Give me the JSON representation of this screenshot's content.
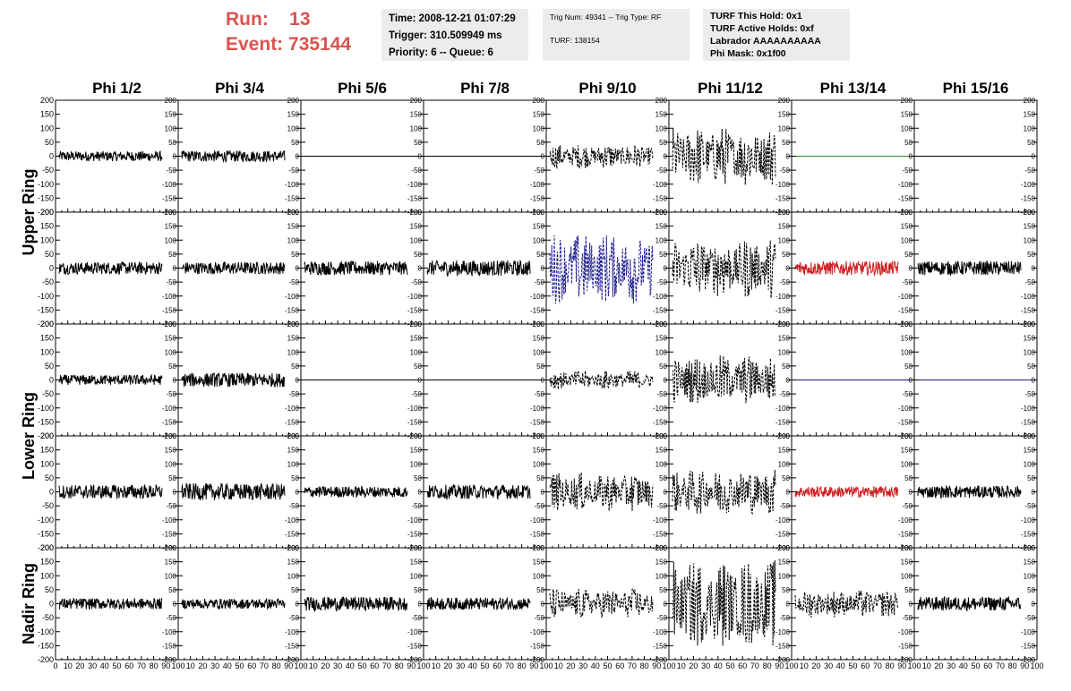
{
  "header": {
    "run_label": "Run:",
    "run_value": "13",
    "event_label": "Event:",
    "event_value": "735144",
    "info1": [
      "Time: 2008-12-21 01:07:29",
      "Trigger: 310.509949 ms",
      "Priority: 6 -- Queue: 6"
    ],
    "info2": [
      "Trig Num: 49341 -- Trig Type: RF",
      "TURF: 138154"
    ],
    "info3": [
      "TURF This Hold: 0x1",
      "TURF Active Holds: 0xf",
      "Labrador AAAAAAAAAA",
      "Phi Mask: 0x1f00"
    ]
  },
  "colors": {
    "header_red": "#d9534f",
    "info_bg": "#ececec",
    "trace_black": "#000000",
    "trace_blue": "#1a1a8c",
    "trace_green": "#2a8a2a",
    "trace_red": "#cc2222"
  },
  "chart_data": {
    "type": "line",
    "columns": [
      "Phi 1/2",
      "Phi 3/4",
      "Phi 5/6",
      "Phi 7/8",
      "Phi 9/10",
      "Phi 11/12",
      "Phi 13/14",
      "Phi 15/16"
    ],
    "ring_labels": [
      {
        "text": "Upper Ring",
        "rows": [
          0,
          1
        ]
      },
      {
        "text": "Lower Ring",
        "rows": [
          2,
          3
        ]
      },
      {
        "text": "Nadir Ring",
        "rows": [
          4,
          4
        ]
      }
    ],
    "ylim": [
      -200,
      200
    ],
    "xlim": [
      0,
      100
    ],
    "ytick_labels": [
      "200",
      "150",
      "100",
      "50",
      "0",
      "-50",
      "-100",
      "-150",
      "-200"
    ],
    "xtick_labels": [
      "0",
      "10",
      "20",
      "30",
      "40",
      "50",
      "60",
      "70",
      "80",
      "90",
      "100"
    ],
    "panels": [
      [
        {
          "a": 18,
          "t": "s",
          "c": "trace_black"
        },
        {
          "a": 20,
          "t": "s",
          "c": "trace_black"
        },
        {
          "a": 0,
          "t": "f",
          "c": "trace_black"
        },
        {
          "a": 0,
          "t": "f",
          "c": "trace_black"
        },
        {
          "a": 45,
          "t": "d",
          "c": "trace_black"
        },
        {
          "a": 110,
          "t": "d",
          "c": "trace_black"
        },
        {
          "a": 0,
          "t": "f",
          "c": "trace_green"
        },
        {
          "a": 0,
          "t": "f",
          "c": "trace_black"
        }
      ],
      [
        {
          "a": 22,
          "t": "s",
          "c": "trace_black"
        },
        {
          "a": 22,
          "t": "s",
          "c": "trace_black"
        },
        {
          "a": 25,
          "t": "s",
          "c": "trace_black"
        },
        {
          "a": 28,
          "t": "s",
          "c": "trace_black"
        },
        {
          "a": 130,
          "t": "d",
          "c": "trace_blue"
        },
        {
          "a": 110,
          "t": "d",
          "c": "trace_black"
        },
        {
          "a": 25,
          "t": "s",
          "c": "trace_red"
        },
        {
          "a": 25,
          "t": "s",
          "c": "trace_black"
        }
      ],
      [
        {
          "a": 18,
          "t": "s",
          "c": "trace_black"
        },
        {
          "a": 25,
          "t": "s",
          "c": "trace_black"
        },
        {
          "a": 0,
          "t": "f",
          "c": "trace_black"
        },
        {
          "a": 0,
          "t": "f",
          "c": "trace_black"
        },
        {
          "a": 35,
          "t": "d",
          "c": "trace_black"
        },
        {
          "a": 90,
          "t": "d",
          "c": "trace_black"
        },
        {
          "a": 0,
          "t": "f",
          "c": "trace_blue"
        },
        {
          "a": 0,
          "t": "f",
          "c": "trace_blue"
        }
      ],
      [
        {
          "a": 25,
          "t": "s",
          "c": "trace_black"
        },
        {
          "a": 30,
          "t": "s",
          "c": "trace_black"
        },
        {
          "a": 20,
          "t": "s",
          "c": "trace_black"
        },
        {
          "a": 25,
          "t": "s",
          "c": "trace_black"
        },
        {
          "a": 70,
          "t": "d",
          "c": "trace_black"
        },
        {
          "a": 85,
          "t": "d",
          "c": "trace_black"
        },
        {
          "a": 20,
          "t": "s",
          "c": "trace_red"
        },
        {
          "a": 22,
          "t": "s",
          "c": "trace_black"
        }
      ],
      [
        {
          "a": 20,
          "t": "s",
          "c": "trace_black"
        },
        {
          "a": 18,
          "t": "s",
          "c": "trace_black"
        },
        {
          "a": 25,
          "t": "s",
          "c": "trace_black"
        },
        {
          "a": 22,
          "t": "s",
          "c": "trace_black"
        },
        {
          "a": 55,
          "t": "d",
          "c": "trace_black"
        },
        {
          "a": 160,
          "t": "d",
          "c": "trace_black"
        },
        {
          "a": 50,
          "t": "d",
          "c": "trace_black"
        },
        {
          "a": 25,
          "t": "s",
          "c": "trace_black"
        }
      ]
    ]
  }
}
